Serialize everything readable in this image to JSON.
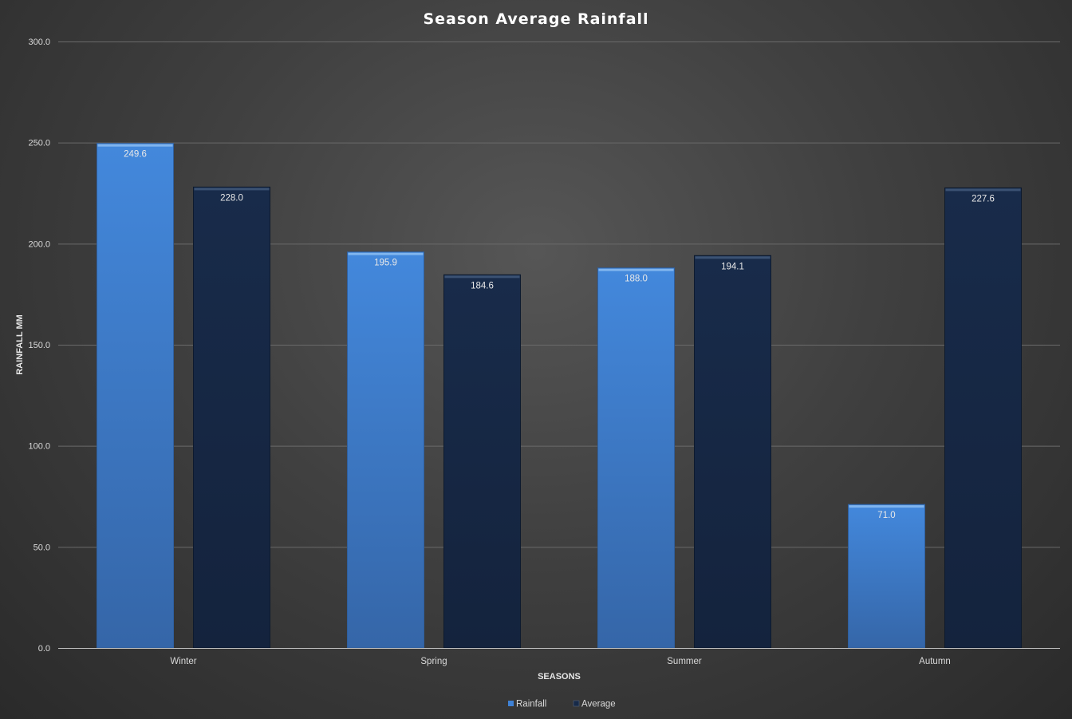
{
  "chart_data": {
    "type": "bar",
    "title": "Season Average Rainfall",
    "xlabel": "SEASONS",
    "ylabel": "RAINFALL MM",
    "categories": [
      "Winter",
      "Spring",
      "Summer",
      "Autumn"
    ],
    "series": [
      {
        "name": "Rainfall",
        "values": [
          249.6,
          195.9,
          188.0,
          71.0
        ],
        "labels": [
          "249.6",
          "195.9",
          "188.0",
          "71.0"
        ],
        "color": "#3f82d6"
      },
      {
        "name": "Average",
        "values": [
          228.0,
          184.6,
          194.1,
          227.6
        ],
        "labels": [
          "228.0",
          "184.6",
          "194.1",
          "227.6"
        ],
        "color": "#172a48"
      }
    ],
    "ylim": [
      0,
      300
    ],
    "yticks": [
      0,
      50,
      100,
      150,
      200,
      250,
      300
    ],
    "ytick_labels": [
      "0.0",
      "50.0",
      "100.0",
      "150.0",
      "200.0",
      "250.0",
      "300.0"
    ],
    "grid": true,
    "legend_position": "bottom"
  }
}
